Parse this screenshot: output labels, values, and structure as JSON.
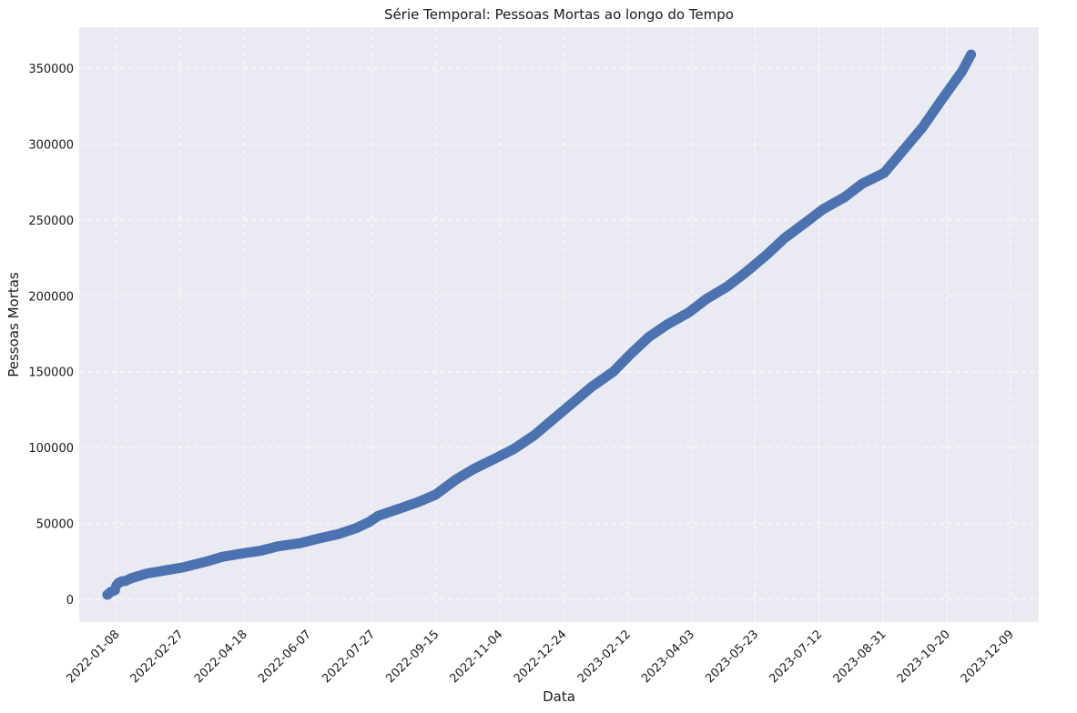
{
  "chart_data": {
    "type": "scatter",
    "title": "Série Temporal: Pessoas Mortas ao longo do Tempo",
    "xlabel": "Data",
    "ylabel": "Pessoas Mortas",
    "x_ticks": [
      "2022-01-08",
      "2022-02-27",
      "2022-04-18",
      "2022-06-07",
      "2022-07-27",
      "2022-09-15",
      "2022-11-04",
      "2022-12-24",
      "2023-02-12",
      "2023-04-03",
      "2023-05-23",
      "2023-07-12",
      "2023-08-31",
      "2023-10-20",
      "2023-12-09"
    ],
    "y_ticks": [
      0,
      50000,
      100000,
      150000,
      200000,
      250000,
      300000,
      350000
    ],
    "xlim": [
      "2021-12-10",
      "2023-12-31"
    ],
    "ylim": [
      -15000,
      377000
    ],
    "grid": true,
    "series": [
      {
        "color": "#4c72b0",
        "x": [
          "2022-01-01",
          "2022-01-04",
          "2022-01-07",
          "2022-01-08",
          "2022-01-10",
          "2022-01-13",
          "2022-01-15",
          "2022-01-20",
          "2022-02-01",
          "2022-02-15",
          "2022-03-01",
          "2022-03-20",
          "2022-04-01",
          "2022-04-15",
          "2022-05-01",
          "2022-05-15",
          "2022-06-01",
          "2022-06-15",
          "2022-07-01",
          "2022-07-15",
          "2022-07-25",
          "2022-08-01",
          "2022-08-15",
          "2022-09-01",
          "2022-09-15",
          "2022-10-01",
          "2022-10-15",
          "2022-11-01",
          "2022-11-15",
          "2022-12-01",
          "2022-12-15",
          "2023-01-01",
          "2023-01-15",
          "2023-02-01",
          "2023-02-15",
          "2023-03-01",
          "2023-03-15",
          "2023-04-01",
          "2023-04-15",
          "2023-05-01",
          "2023-05-15",
          "2023-06-01",
          "2023-06-15",
          "2023-07-01",
          "2023-07-15",
          "2023-08-01",
          "2023-08-15",
          "2023-09-01",
          "2023-09-15",
          "2023-10-01",
          "2023-10-15",
          "2023-11-01",
          "2023-11-08"
        ],
        "y": [
          3000,
          5000,
          6000,
          9000,
          11000,
          12000,
          12000,
          14000,
          17000,
          19000,
          21000,
          25000,
          28000,
          30000,
          32000,
          35000,
          37000,
          40000,
          43000,
          47000,
          51000,
          55000,
          59000,
          64000,
          69000,
          79000,
          86000,
          93000,
          99000,
          108000,
          118000,
          130000,
          140000,
          150000,
          162000,
          173000,
          181000,
          189000,
          198000,
          206000,
          215000,
          227000,
          238000,
          248000,
          257000,
          265000,
          274000,
          281000,
          295000,
          311000,
          328000,
          348000,
          359000
        ]
      }
    ]
  }
}
